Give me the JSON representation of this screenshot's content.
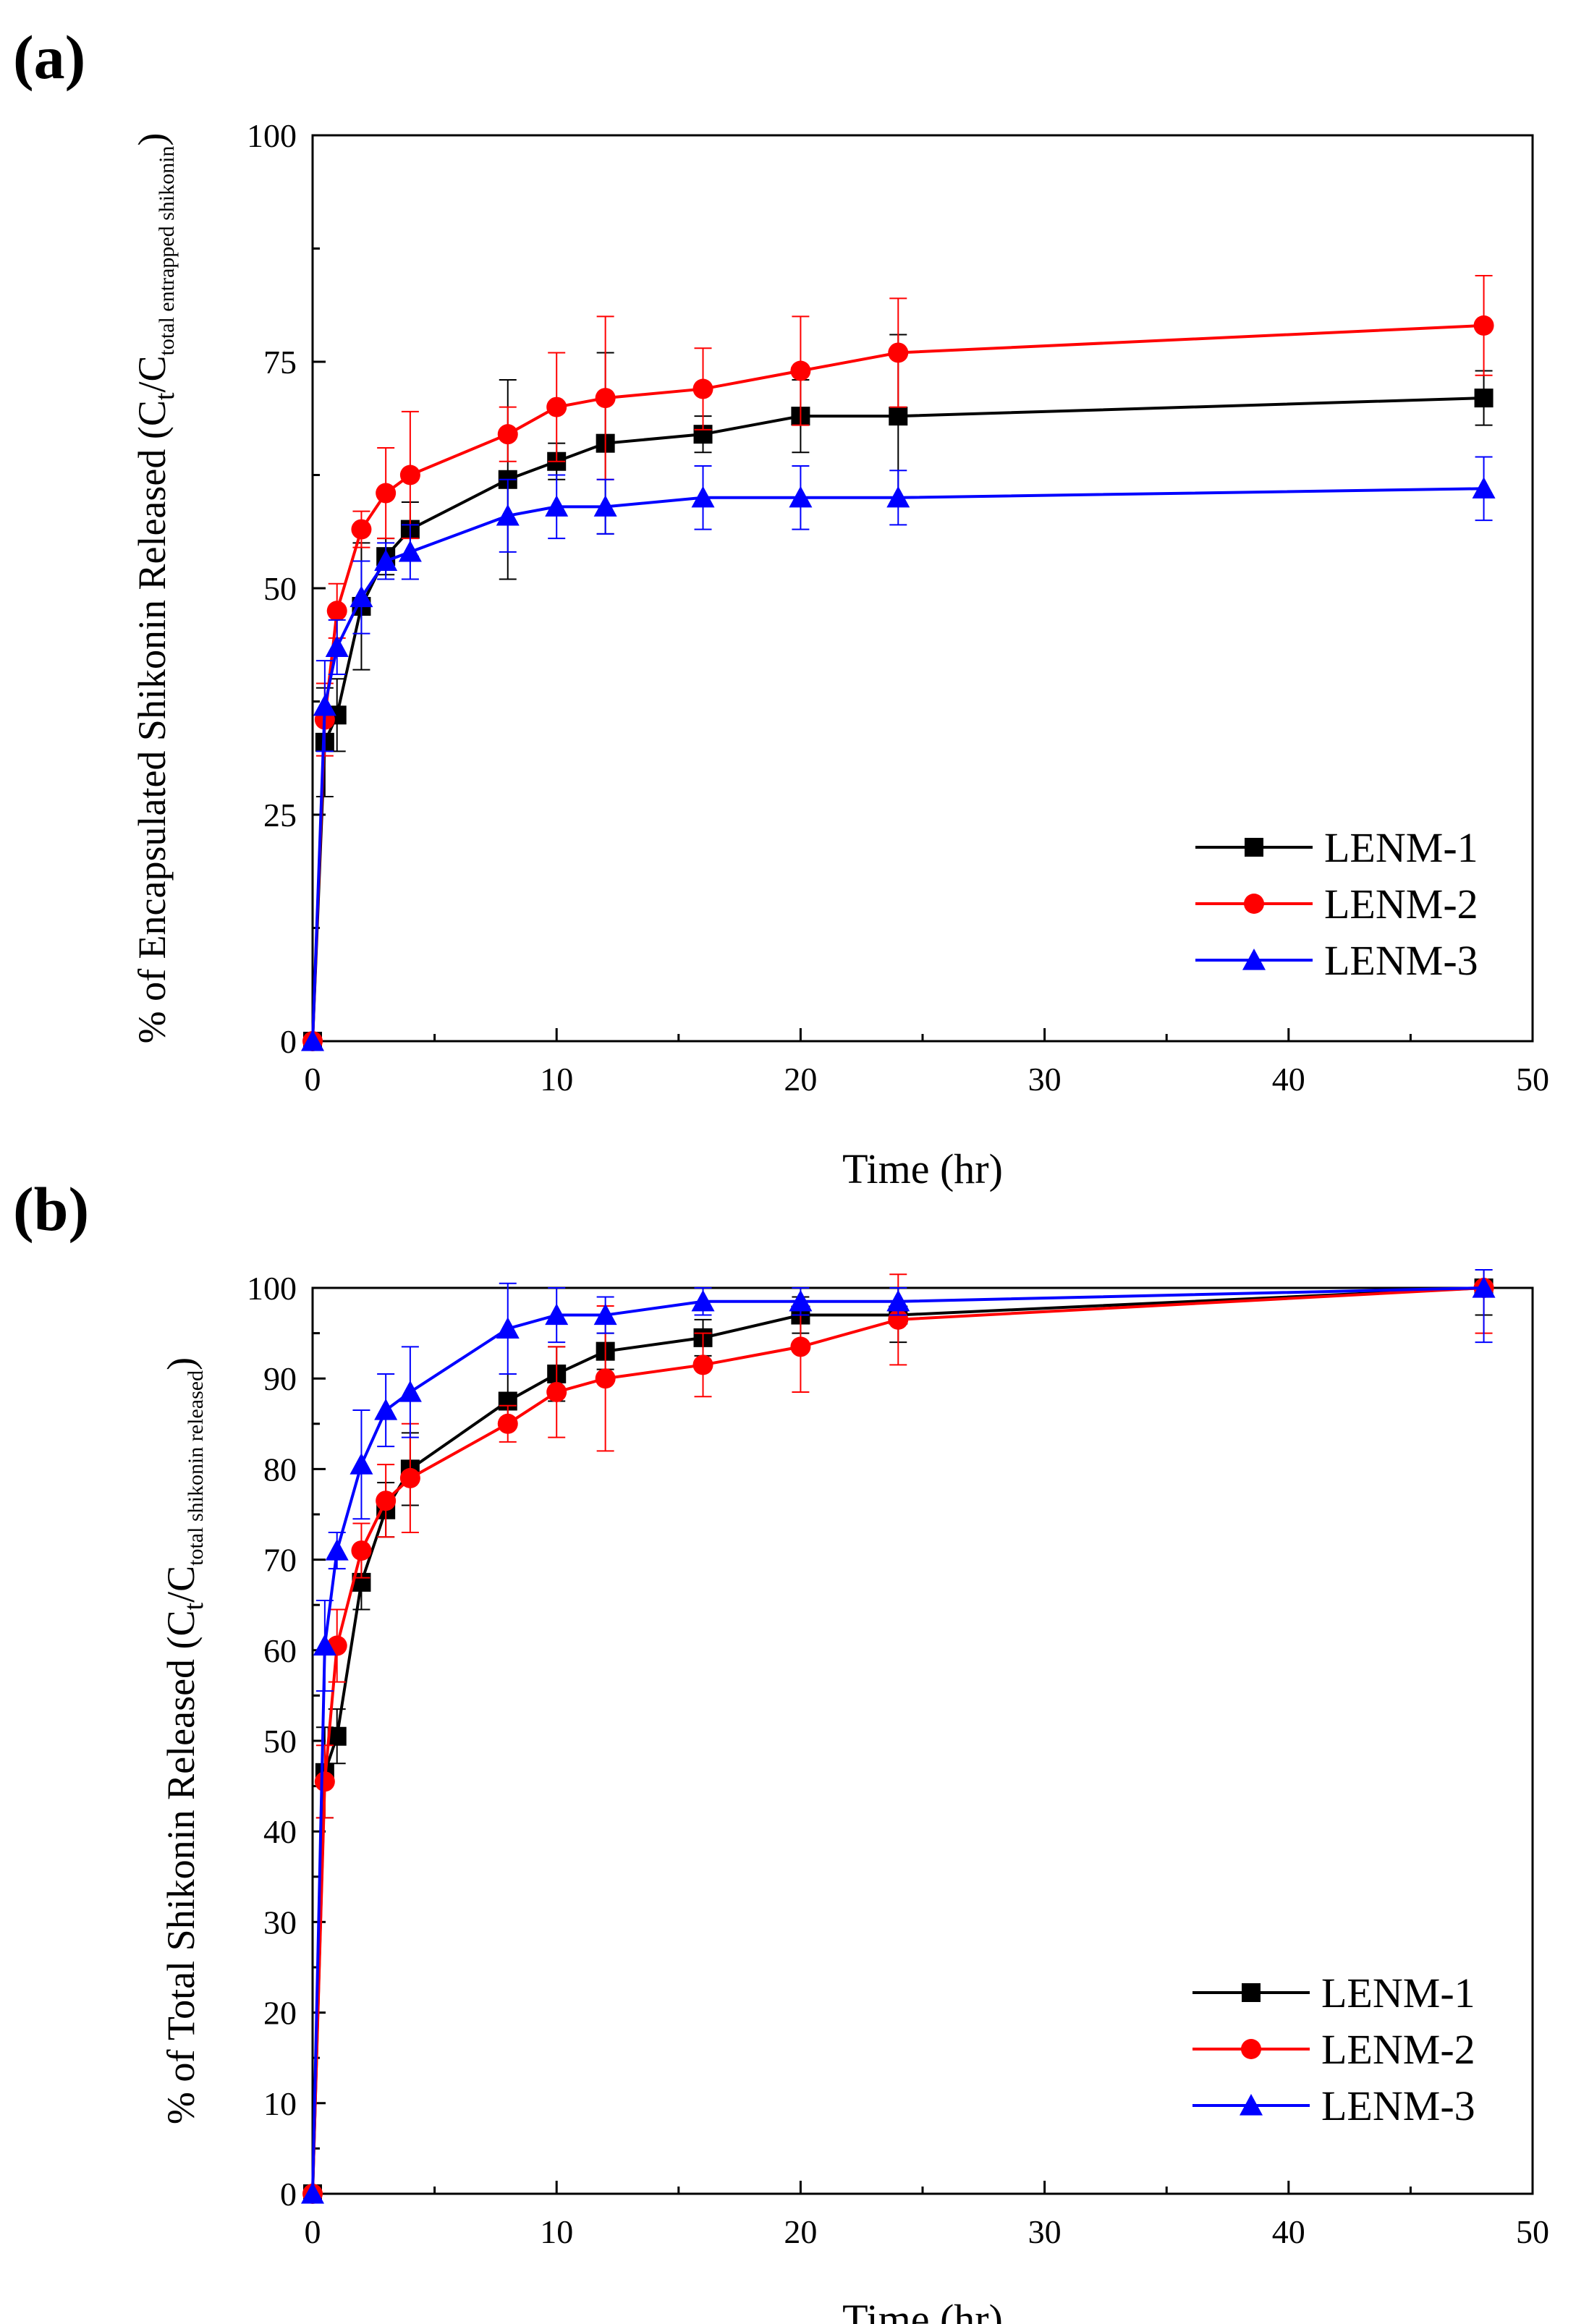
{
  "chart_data": [
    {
      "panel_label": "(a)",
      "type": "line",
      "xlabel": "Time (hr)",
      "ylabel": {
        "main": "% of Encapsulated Shikonin Released (C",
        "sub1": "t",
        "mid": "/C",
        "sub2": "total entrapped shikonin",
        "end": ")"
      },
      "xlim": [
        0,
        50
      ],
      "ylim": [
        0,
        100
      ],
      "xticks": [
        0,
        10,
        20,
        30,
        40,
        50
      ],
      "yticks": [
        0,
        25,
        50,
        75,
        100
      ],
      "x_tick_labels": [
        "0",
        "10",
        "20",
        "30",
        "40",
        "50"
      ],
      "y_tick_labels": [
        "0",
        "25",
        "50",
        "75",
        "100"
      ],
      "legend_position": "bottom-right",
      "x": [
        0,
        0.5,
        1,
        2,
        3,
        4,
        8,
        10,
        12,
        16,
        20,
        24,
        48
      ],
      "series": [
        {
          "name": "LENM-1",
          "color": "#000000",
          "marker": "square",
          "values": [
            0,
            33,
            36,
            48,
            53.5,
            56.5,
            62,
            64,
            66,
            67,
            69,
            69,
            71
          ],
          "errors": [
            0,
            6,
            4,
            7,
            2,
            3,
            11,
            2,
            10,
            2,
            4,
            9,
            3
          ]
        },
        {
          "name": "LENM-2",
          "color": "#ff0000",
          "marker": "circle",
          "values": [
            0,
            35.5,
            47.5,
            56.5,
            60.5,
            62.5,
            67,
            70,
            71,
            72,
            74,
            76,
            79
          ],
          "errors": [
            0,
            4,
            3,
            2,
            5,
            7,
            3,
            6,
            9,
            4.5,
            6,
            6,
            5.5
          ]
        },
        {
          "name": "LENM-3",
          "color": "#0000ff",
          "marker": "triangle",
          "values": [
            0,
            37,
            43.5,
            49,
            53,
            54,
            58,
            59,
            59,
            60,
            60,
            60,
            61
          ],
          "errors": [
            0,
            5,
            3,
            4,
            2,
            3,
            4,
            3.5,
            3,
            3.5,
            3.5,
            3,
            3.5
          ]
        }
      ]
    },
    {
      "panel_label": "(b)",
      "type": "line",
      "xlabel": "Time (hr)",
      "ylabel": {
        "main": "% of Total Shikonin Released (C",
        "sub1": "t",
        "mid": "/C",
        "sub2": "total shikonin released",
        "end": ")"
      },
      "xlim": [
        0,
        50
      ],
      "ylim": [
        0,
        100
      ],
      "xticks": [
        0,
        10,
        20,
        30,
        40,
        50
      ],
      "yticks": [
        0,
        10,
        20,
        30,
        40,
        50,
        60,
        70,
        80,
        90,
        100
      ],
      "x_tick_labels": [
        "0",
        "10",
        "20",
        "30",
        "40",
        "50"
      ],
      "y_tick_labels": [
        "0",
        "10",
        "20",
        "30",
        "40",
        "50",
        "60",
        "70",
        "80",
        "90",
        "100"
      ],
      "legend_position": "bottom-right",
      "x": [
        0,
        0.5,
        1,
        2,
        3,
        4,
        8,
        10,
        12,
        16,
        20,
        24,
        48
      ],
      "series": [
        {
          "name": "LENM-1",
          "color": "#000000",
          "marker": "square",
          "values": [
            0,
            46.5,
            50.5,
            67.5,
            75.5,
            80,
            87.5,
            90.5,
            93,
            94.5,
            97,
            97,
            100
          ],
          "errors": [
            0,
            5,
            3,
            3,
            3,
            4,
            3,
            3,
            2,
            2,
            2,
            3,
            3
          ]
        },
        {
          "name": "LENM-2",
          "color": "#ff0000",
          "marker": "circle",
          "values": [
            0,
            45.5,
            60.5,
            71,
            76.5,
            79,
            85,
            88.5,
            90,
            91.5,
            93.5,
            96.5,
            100
          ],
          "errors": [
            0,
            4,
            4,
            3,
            4,
            6,
            2,
            5,
            8,
            3.5,
            5,
            5,
            5
          ]
        },
        {
          "name": "LENM-3",
          "color": "#0000ff",
          "marker": "triangle",
          "values": [
            0,
            60.5,
            71,
            80.5,
            86.5,
            88.5,
            95.5,
            97,
            97,
            98.5,
            98.5,
            98.5,
            100
          ],
          "errors": [
            0,
            5,
            2,
            6,
            4,
            5,
            5,
            3,
            2,
            1.5,
            1.5,
            1.5,
            6
          ]
        }
      ]
    }
  ]
}
